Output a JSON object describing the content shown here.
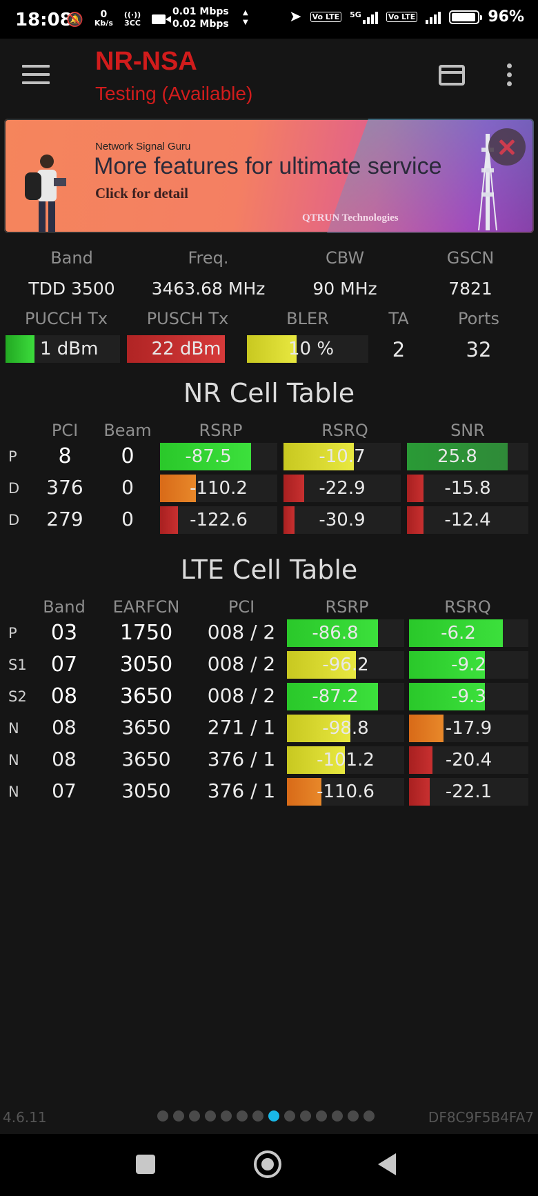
{
  "status_bar": {
    "time": "18:08",
    "speed_small": "0",
    "speed_unit": "Kb/s",
    "hotspot_label": "3CC",
    "net_up": "0.01 Mbps",
    "net_down": "0.02 Mbps",
    "volte1": "Vo LTE",
    "fiveg": "5G",
    "volte2": "Vo LTE",
    "battery": "96%"
  },
  "app_bar": {
    "title": "NR-NSA",
    "subtitle": "Testing (Available)",
    "accent_color": "#d11c1c"
  },
  "ad": {
    "brand": "Network Signal Guru",
    "headline": "More features for ultimate service",
    "cta": "Click for detail",
    "company": "QTRUN Technologies"
  },
  "nr_info": {
    "headers": [
      "Band",
      "Freq.",
      "CBW",
      "GSCN"
    ],
    "values": [
      "TDD 3500",
      "3463.68 MHz",
      "90 MHz",
      "7821"
    ],
    "tx_headers": [
      "PUCCH Tx",
      "PUSCH Tx",
      "BLER",
      "TA",
      "Ports"
    ],
    "pucch": "1 dBm",
    "pusch": "22 dBm",
    "bler": "10 %",
    "ta": "2",
    "ports": "32"
  },
  "nr_table": {
    "title": "NR Cell Table",
    "headers": [
      "PCI",
      "Beam",
      "RSRP",
      "RSRQ",
      "SNR"
    ],
    "rows": [
      {
        "type": "P",
        "pci": "8",
        "beam": "0",
        "rsrp": "-87.5",
        "rsrq": "-10.7",
        "snr": "25.8"
      },
      {
        "type": "D",
        "pci": "376",
        "beam": "0",
        "rsrp": "-110.2",
        "rsrq": "-22.9",
        "snr": "-15.8"
      },
      {
        "type": "D",
        "pci": "279",
        "beam": "0",
        "rsrp": "-122.6",
        "rsrq": "-30.9",
        "snr": "-12.4"
      }
    ]
  },
  "lte_table": {
    "title": "LTE Cell Table",
    "headers": [
      "Band",
      "EARFCN",
      "PCI",
      "RSRP",
      "RSRQ"
    ],
    "rows": [
      {
        "type": "P",
        "band": "03",
        "earfcn": "1750",
        "pci": "008 / 2",
        "rsrp": "-86.8",
        "rsrq": "-6.2"
      },
      {
        "type": "S1",
        "band": "07",
        "earfcn": "3050",
        "pci": "008 / 2",
        "rsrp": "-96.2",
        "rsrq": "-9.2"
      },
      {
        "type": "S2",
        "band": "08",
        "earfcn": "3650",
        "pci": "008 / 2",
        "rsrp": "-87.2",
        "rsrq": "-9.3"
      },
      {
        "type": "N",
        "band": "08",
        "earfcn": "3650",
        "pci": "271 / 1",
        "rsrp": "-98.8",
        "rsrq": "-17.9"
      },
      {
        "type": "N",
        "band": "08",
        "earfcn": "3650",
        "pci": "376 / 1",
        "rsrp": "-101.2",
        "rsrq": "-20.4"
      },
      {
        "type": "N",
        "band": "07",
        "earfcn": "3050",
        "pci": "376 / 1",
        "rsrp": "-110.6",
        "rsrq": "-22.1"
      }
    ]
  },
  "footer": {
    "version": "4.6.11",
    "device_id": "DF8C9F5B4FA7",
    "page_count": 14,
    "active_page": 8
  },
  "colors": {
    "green": "#2ecc2e",
    "yellow": "#d6d62a",
    "orange": "#e0781f",
    "red": "#b52222",
    "dark_green": "#2f9a3a",
    "active_dot": "#19b8e8"
  }
}
